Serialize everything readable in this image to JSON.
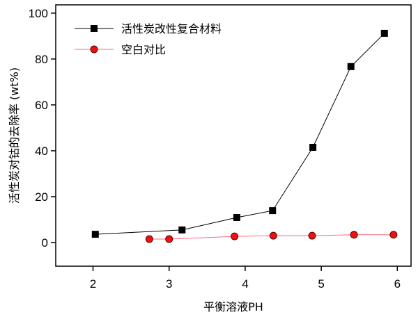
{
  "chart_data": {
    "type": "line",
    "xlabel": "平衡溶液PH",
    "ylabel": "活性炭对钴的去除率 (wt%)",
    "xlim": [
      1.51,
      6.18
    ],
    "ylim": [
      -10.3,
      103.6
    ],
    "xticks": [
      2,
      3,
      4,
      5,
      6
    ],
    "yticks": [
      0,
      20,
      40,
      60,
      80,
      100
    ],
    "grid": false,
    "legend_position": "top-left",
    "series": [
      {
        "name": "活性炭改性复合材料",
        "marker": "square",
        "color": "#000000",
        "line_color": "#000000",
        "x": [
          2.03,
          3.17,
          3.89,
          4.36,
          4.89,
          5.39,
          5.83
        ],
        "y": [
          3.6,
          5.5,
          10.9,
          13.9,
          41.5,
          76.7,
          91.2
        ]
      },
      {
        "name": "空白对比",
        "marker": "circle",
        "color": "#ee1111",
        "line_color": "#ff6680",
        "x": [
          2.74,
          3.0,
          3.86,
          4.37,
          4.88,
          5.43,
          5.95
        ],
        "y": [
          1.5,
          1.5,
          2.7,
          3.0,
          3.0,
          3.4,
          3.4
        ]
      }
    ]
  }
}
